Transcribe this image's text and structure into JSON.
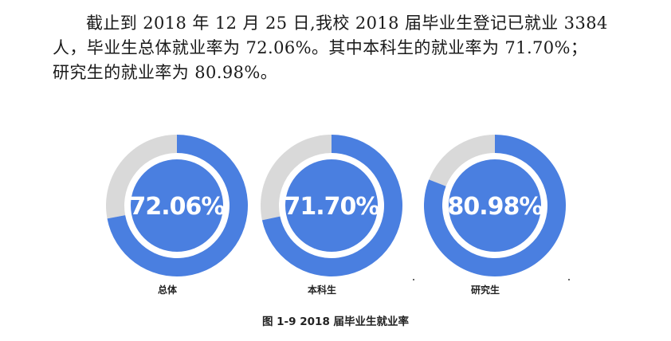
{
  "paragraph": {
    "line1": "截止到 2018 年 12 月 25 日,我校 2018 届毕业生登记已就业 3384",
    "line2": "人，毕业生总体就业率为 72.06%。其中本科生的就业率为 71.70%；",
    "line3": "研究生的就业率为 80.98%。"
  },
  "chart_data": {
    "type": "pie",
    "subtype": "donut",
    "title": "图 1-9 2018 届毕业生就业率",
    "unit": "%",
    "categories": [
      "总体",
      "本科生",
      "研究生"
    ],
    "values": [
      72.06,
      71.7,
      80.98
    ],
    "value_labels": [
      "72.06%",
      "71.70%",
      "80.98%"
    ],
    "colors": {
      "filled": "#4a7fe0",
      "remainder": "#d9d9d9",
      "label_text": "#ffffff"
    }
  }
}
